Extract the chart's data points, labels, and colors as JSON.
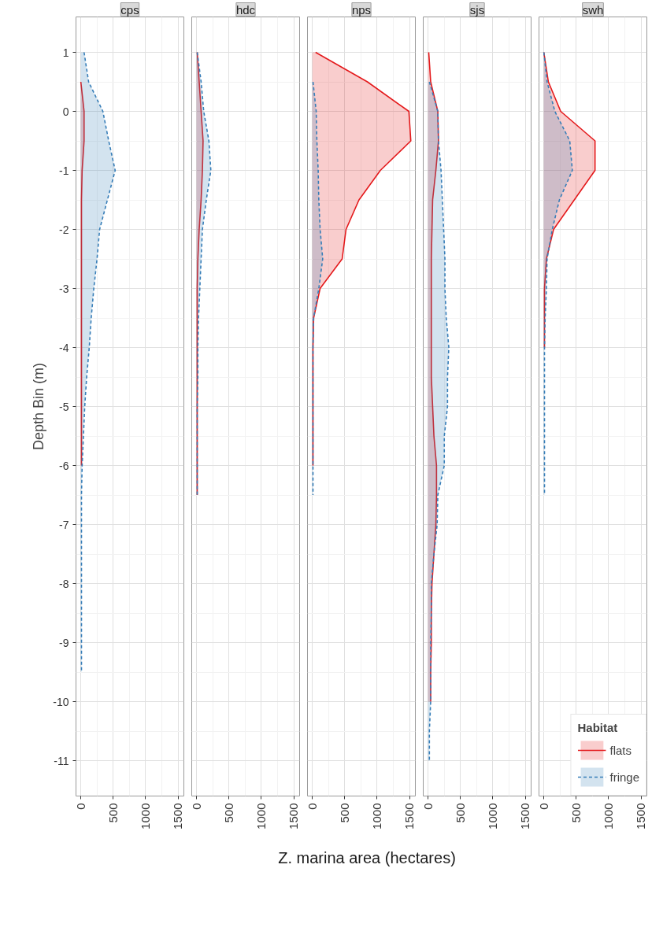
{
  "chart_data": [
    {
      "type": "area",
      "orientation": "horizontal",
      "title": "cps",
      "ylabel": "Depth Bin (m)",
      "xlim": [
        -75,
        1590
      ],
      "xticks": [
        0,
        500,
        1000,
        1500
      ],
      "ylim": [
        -11.6,
        1.6
      ],
      "yticks": [
        -11,
        -10,
        -9,
        -8,
        -7,
        -6,
        -5,
        -4,
        -3,
        -2,
        -1,
        0,
        1
      ],
      "grid": true,
      "series": [
        {
          "color": "#e41a1c",
          "line_style": "solid",
          "x": [
            0.5,
            0,
            -0.5,
            -1,
            -1.5,
            -2,
            -2.5,
            -3,
            -3.5,
            -4,
            -4.5,
            -5,
            -5.5,
            -6
          ],
          "values": [
            0,
            50,
            50,
            20,
            10,
            10,
            10,
            10,
            10,
            10,
            10,
            10,
            10,
            10
          ]
        },
        {
          "color": "#377eb8",
          "line_style": "dashed",
          "x": [
            1,
            0.5,
            0,
            -0.5,
            -1,
            -1.5,
            -2,
            -2.5,
            -3,
            -3.5,
            -4,
            -4.5,
            -5,
            -5.5,
            -6,
            -6.5,
            -7,
            -7.5,
            -8,
            -8.5,
            -9,
            -9.5
          ],
          "values": [
            50,
            120,
            340,
            430,
            530,
            410,
            290,
            250,
            200,
            160,
            130,
            90,
            60,
            40,
            20,
            10,
            10,
            10,
            10,
            10,
            10,
            10
          ]
        }
      ]
    },
    {
      "type": "area",
      "orientation": "horizontal",
      "title": "hdc",
      "xlim": [
        -75,
        1590
      ],
      "xticks": [
        0,
        500,
        1000,
        1500
      ],
      "ylim": [
        -11.6,
        1.6
      ],
      "yticks": [
        -11,
        -10,
        -9,
        -8,
        -7,
        -6,
        -5,
        -4,
        -3,
        -2,
        -1,
        0,
        1
      ],
      "grid": true,
      "tick_labels": "x",
      "series": [
        {
          "color": "#e41a1c",
          "line_style": "solid",
          "x": [
            1,
            0.5,
            0,
            -0.5,
            -1,
            -1.5,
            -2,
            -2.5,
            -3,
            -3.5,
            -4,
            -4.5,
            -5,
            -5.5,
            -6,
            -6.5
          ],
          "values": [
            10,
            40,
            70,
            100,
            90,
            70,
            40,
            20,
            10,
            10,
            10,
            10,
            10,
            10,
            10,
            10
          ]
        },
        {
          "color": "#377eb8",
          "line_style": "dashed",
          "x": [
            1,
            0.5,
            0,
            -0.5,
            -1,
            -1.5,
            -2,
            -2.5,
            -3,
            -3.5,
            -4,
            -4.5,
            -5,
            -5.5,
            -6,
            -6.5
          ],
          "values": [
            10,
            70,
            110,
            190,
            220,
            150,
            90,
            70,
            50,
            30,
            20,
            20,
            10,
            10,
            10,
            10
          ]
        }
      ]
    },
    {
      "type": "area",
      "orientation": "horizontal",
      "title": "nps",
      "xlabel": "Z. marina area (hectares)",
      "xlim": [
        -75,
        1590
      ],
      "xticks": [
        0,
        500,
        1000,
        1500
      ],
      "ylim": [
        -11.6,
        1.6
      ],
      "yticks": [
        -11,
        -10,
        -9,
        -8,
        -7,
        -6,
        -5,
        -4,
        -3,
        -2,
        -1,
        0,
        1
      ],
      "grid": true,
      "tick_labels": "x",
      "series": [
        {
          "color": "#e41a1c",
          "line_style": "solid",
          "x": [
            1,
            0.5,
            0,
            -0.5,
            -1,
            -1.5,
            -2,
            -2.5,
            -3,
            -3.5,
            -4,
            -4.5,
            -5,
            -5.5,
            -6
          ],
          "values": [
            50,
            850,
            1490,
            1520,
            1050,
            720,
            520,
            460,
            120,
            20,
            10,
            10,
            10,
            10,
            10
          ]
        },
        {
          "color": "#377eb8",
          "line_style": "dashed",
          "x": [
            0.5,
            0,
            -0.5,
            -1,
            -1.5,
            -2,
            -2.5,
            -3,
            -3.5,
            -4,
            -4.5,
            -5,
            -5.5,
            -6,
            -6.5
          ],
          "values": [
            10,
            60,
            70,
            90,
            100,
            120,
            160,
            100,
            20,
            10,
            10,
            10,
            10,
            10,
            10
          ]
        }
      ]
    },
    {
      "type": "area",
      "orientation": "horizontal",
      "title": "sjs",
      "xlim": [
        -75,
        1590
      ],
      "xticks": [
        0,
        500,
        1000,
        1500
      ],
      "ylim": [
        -11.6,
        1.6
      ],
      "yticks": [
        -11,
        -10,
        -9,
        -8,
        -7,
        -6,
        -5,
        -4,
        -3,
        -2,
        -1,
        0,
        1
      ],
      "grid": true,
      "tick_labels": "x",
      "series": [
        {
          "color": "#e41a1c",
          "line_style": "solid",
          "x": [
            1,
            0.5,
            0,
            -0.5,
            -1,
            -1.5,
            -2,
            -2.5,
            -3,
            -3.5,
            -4,
            -4.5,
            -5,
            -5.5,
            -6,
            -6.5,
            -7,
            -7.5,
            -8,
            -8.5,
            -9,
            -9.5,
            -10
          ],
          "values": [
            10,
            40,
            150,
            160,
            120,
            70,
            60,
            50,
            50,
            50,
            50,
            50,
            70,
            90,
            130,
            130,
            120,
            90,
            60,
            50,
            50,
            40,
            40
          ]
        },
        {
          "color": "#377eb8",
          "line_style": "dashed",
          "x": [
            0.5,
            0,
            -0.5,
            -1,
            -1.5,
            -2,
            -2.5,
            -3,
            -3.5,
            -4,
            -4.5,
            -5,
            -5.5,
            -6,
            -6.5,
            -7,
            -7.5,
            -8,
            -8.5,
            -9,
            -9.5,
            -10,
            -10.5,
            -11
          ],
          "values": [
            20,
            150,
            160,
            200,
            220,
            240,
            260,
            260,
            280,
            320,
            300,
            300,
            250,
            250,
            150,
            140,
            90,
            50,
            50,
            40,
            40,
            40,
            20,
            20
          ]
        }
      ]
    },
    {
      "type": "area",
      "orientation": "horizontal",
      "title": "swh",
      "xlim": [
        -75,
        1590
      ],
      "xticks": [
        0,
        500,
        1000,
        1500
      ],
      "ylim": [
        -11.6,
        1.6
      ],
      "yticks": [
        -11,
        -10,
        -9,
        -8,
        -7,
        -6,
        -5,
        -4,
        -3,
        -2,
        -1,
        0,
        1
      ],
      "grid": true,
      "tick_labels": "x",
      "legend": "bottom right",
      "legend_title": "Habitat",
      "series": [
        {
          "name": "flats",
          "color": "#e41a1c",
          "line_style": "solid",
          "x": [
            1,
            0.5,
            0,
            -0.5,
            -1,
            -1.5,
            -2,
            -2.5,
            -3,
            -3.5,
            -4
          ],
          "values": [
            0,
            70,
            260,
            790,
            790,
            470,
            150,
            40,
            10,
            10,
            10
          ]
        },
        {
          "name": "fringe",
          "color": "#377eb8",
          "line_style": "dashed",
          "x": [
            1,
            0.5,
            0,
            -0.5,
            -1,
            -1.5,
            -2,
            -2.5,
            -3,
            -3.5,
            -4,
            -4.5,
            -5,
            -5.5,
            -6,
            -6.5
          ],
          "values": [
            0,
            50,
            170,
            400,
            440,
            240,
            130,
            50,
            40,
            20,
            10,
            10,
            10,
            10,
            10,
            10
          ]
        }
      ]
    }
  ]
}
